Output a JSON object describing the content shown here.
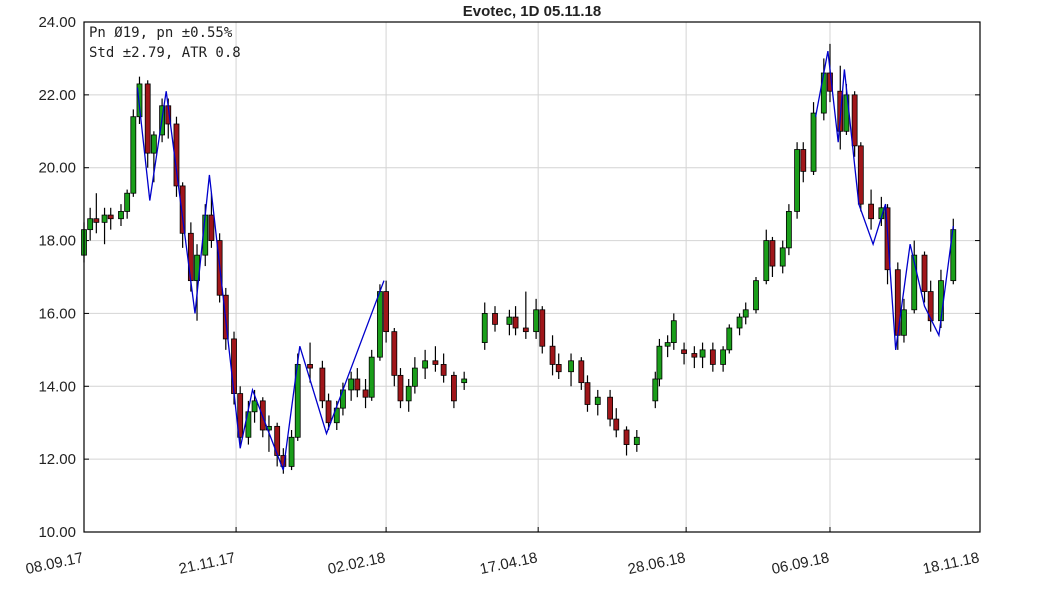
{
  "chart_data": {
    "type": "candlestick",
    "title": "Evotec, 1D 05.11.18",
    "annotations": [
      "Pn  Ø19, pn ±0.55%",
      "Std ±2.79, ATR 0.8"
    ],
    "xlim": [
      "08.09.17",
      "18.11.18"
    ],
    "xticks": [
      "08.09.17",
      "21.11.17",
      "02.02.18",
      "17.04.18",
      "28.06.18",
      "06.09.18",
      "18.11.18"
    ],
    "ylim": [
      10,
      24
    ],
    "yticks": [
      {
        "value": 10,
        "label": "10.00"
      },
      {
        "value": 12,
        "label": "12.00"
      },
      {
        "value": 14,
        "label": "14.00"
      },
      {
        "value": 16,
        "label": "16.00"
      },
      {
        "value": 18,
        "label": "18.00"
      },
      {
        "value": 20,
        "label": "20.00"
      },
      {
        "value": 22,
        "label": "22.00"
      },
      {
        "value": 24,
        "label": "24.00"
      }
    ],
    "grid": true,
    "up_color": "#1a9e1a",
    "down_color": "#a0161a",
    "wick_color": "#000000",
    "x": [
      "08.09.17",
      "11.09.17",
      "14.09.17",
      "18.09.17",
      "21.09.17",
      "26.09.17",
      "29.09.17",
      "02.10.17",
      "05.10.17",
      "09.10.17",
      "12.10.17",
      "16.10.17",
      "19.10.17",
      "23.10.17",
      "26.10.17",
      "30.10.17",
      "02.11.17",
      "06.11.17",
      "09.11.17",
      "13.11.17",
      "16.11.17",
      "20.11.17",
      "23.11.17",
      "27.11.17",
      "30.11.17",
      "04.12.17",
      "07.12.17",
      "11.12.17",
      "14.12.17",
      "18.12.17",
      "21.12.17",
      "27.12.17",
      "02.01.18",
      "05.01.18",
      "09.01.18",
      "12.01.18",
      "16.01.18",
      "19.01.18",
      "23.01.18",
      "26.01.18",
      "30.01.18",
      "02.02.18",
      "06.02.18",
      "09.02.18",
      "13.02.18",
      "16.02.18",
      "21.02.18",
      "26.02.18",
      "02.03.18",
      "07.03.18",
      "12.03.18",
      "22.03.18",
      "27.03.18",
      "03.04.18",
      "06.04.18",
      "11.04.18",
      "16.04.18",
      "19.04.18",
      "24.04.18",
      "27.04.18",
      "03.05.18",
      "08.05.18",
      "11.05.18",
      "16.05.18",
      "22.05.18",
      "25.05.18",
      "30.05.18",
      "04.06.18",
      "13.06.18",
      "15.06.18",
      "19.06.18",
      "22.06.18",
      "27.06.18",
      "02.07.18",
      "06.07.18",
      "11.07.18",
      "16.07.18",
      "19.07.18",
      "24.07.18",
      "27.07.18",
      "01.08.18",
      "06.08.18",
      "09.08.18",
      "14.08.18",
      "17.08.18",
      "21.08.18",
      "24.08.18",
      "29.08.18",
      "03.09.18",
      "06.09.18",
      "11.09.18",
      "14.09.18",
      "18.09.18",
      "21.09.18",
      "26.09.18",
      "01.10.18",
      "04.10.18",
      "09.10.18",
      "12.10.18",
      "17.10.18",
      "22.10.18",
      "25.10.18",
      "30.10.18",
      "05.11.18"
    ],
    "open": [
      17.6,
      18.3,
      18.6,
      18.5,
      18.7,
      18.6,
      18.8,
      19.3,
      21.4,
      22.3,
      20.4,
      20.9,
      21.7,
      21.2,
      19.5,
      18.2,
      16.9,
      17.6,
      18.7,
      18.0,
      16.5,
      15.3,
      13.8,
      12.6,
      13.3,
      13.6,
      12.8,
      12.9,
      12.1,
      11.8,
      12.6,
      14.6,
      14.5,
      13.6,
      13.0,
      13.4,
      13.9,
      14.2,
      13.9,
      13.7,
      14.8,
      16.6,
      15.5,
      14.3,
      13.6,
      14.0,
      14.5,
      14.7,
      14.6,
      14.3,
      14.1,
      15.2,
      16.0,
      15.7,
      15.9,
      15.6,
      15.5,
      16.1,
      15.1,
      14.6,
      14.4,
      14.7,
      14.1,
      13.5,
      13.7,
      13.1,
      12.8,
      12.4,
      13.6,
      14.2,
      15.1,
      15.2,
      15.0,
      14.9,
      14.8,
      15.0,
      14.6,
      15.0,
      15.6,
      15.9,
      16.1,
      16.9,
      18.0,
      17.3,
      17.8,
      18.8,
      20.5,
      19.9,
      21.5,
      22.6,
      22.1,
      21.0,
      22.0,
      20.6,
      19.0,
      18.6,
      18.9,
      17.2,
      15.4,
      16.1,
      17.6,
      16.6,
      15.8,
      16.9
    ],
    "high": [
      18.5,
      18.9,
      19.3,
      18.9,
      18.9,
      19.0,
      19.4,
      21.6,
      22.5,
      22.4,
      21.0,
      21.9,
      21.9,
      21.4,
      19.6,
      18.5,
      17.9,
      19.0,
      19.3,
      18.2,
      16.7,
      15.5,
      14.0,
      13.6,
      13.9,
      13.7,
      13.2,
      13.0,
      12.3,
      12.8,
      14.9,
      15.2,
      14.7,
      13.8,
      13.6,
      14.1,
      14.4,
      14.5,
      14.2,
      15.0,
      16.8,
      16.9,
      15.6,
      14.5,
      14.2,
      14.8,
      15.0,
      15.1,
      14.9,
      14.4,
      14.4,
      16.3,
      16.2,
      16.1,
      16.2,
      16.6,
      16.4,
      16.2,
      15.4,
      14.9,
      14.9,
      14.8,
      14.3,
      13.9,
      13.9,
      13.4,
      12.9,
      12.8,
      14.4,
      15.3,
      15.4,
      16.0,
      15.2,
      15.1,
      15.2,
      15.2,
      15.1,
      15.7,
      16.0,
      16.3,
      17.0,
      18.3,
      18.1,
      18.0,
      19.0,
      20.7,
      20.7,
      21.8,
      23.0,
      23.4,
      22.8,
      22.3,
      22.1,
      20.7,
      19.4,
      19.2,
      19.0,
      17.4,
      16.4,
      18.0,
      17.7,
      16.9,
      17.2,
      18.6
    ],
    "low": [
      17.4,
      18.0,
      18.2,
      17.9,
      18.3,
      18.4,
      18.6,
      19.2,
      21.2,
      20.0,
      19.6,
      20.7,
      20.8,
      19.2,
      17.8,
      16.6,
      15.8,
      17.3,
      17.8,
      16.3,
      15.0,
      13.5,
      12.3,
      12.4,
      13.0,
      12.6,
      12.2,
      11.8,
      11.6,
      11.7,
      12.5,
      14.1,
      13.4,
      12.8,
      12.8,
      13.2,
      13.6,
      13.7,
      13.4,
      13.6,
      14.7,
      15.2,
      14.0,
      13.4,
      13.3,
      13.8,
      14.2,
      14.4,
      14.1,
      13.4,
      13.9,
      15.0,
      15.5,
      15.4,
      15.4,
      15.3,
      15.3,
      14.9,
      14.3,
      14.2,
      14.0,
      13.9,
      13.3,
      13.2,
      12.9,
      12.6,
      12.1,
      12.2,
      13.4,
      14.0,
      14.8,
      15.0,
      14.6,
      14.5,
      14.5,
      14.4,
      14.4,
      14.9,
      15.4,
      15.7,
      16.0,
      16.8,
      17.0,
      17.1,
      17.6,
      18.6,
      19.6,
      19.8,
      21.3,
      21.8,
      20.5,
      20.9,
      20.3,
      18.8,
      18.3,
      18.4,
      16.8,
      15.0,
      15.2,
      16.0,
      16.3,
      15.5,
      15.6,
      16.8
    ],
    "close": [
      18.3,
      18.6,
      18.5,
      18.7,
      18.6,
      18.8,
      19.3,
      21.4,
      22.3,
      20.4,
      20.9,
      21.7,
      21.2,
      19.5,
      18.2,
      16.9,
      17.6,
      18.7,
      18.0,
      16.5,
      15.3,
      13.8,
      12.6,
      13.3,
      13.6,
      12.8,
      12.9,
      12.1,
      11.8,
      12.6,
      14.6,
      14.5,
      13.6,
      13.0,
      13.4,
      13.9,
      14.2,
      13.9,
      13.7,
      14.8,
      16.6,
      15.5,
      14.3,
      13.6,
      14.0,
      14.5,
      14.7,
      14.6,
      14.3,
      13.6,
      14.2,
      16.0,
      15.7,
      15.9,
      15.6,
      15.5,
      16.1,
      15.1,
      14.6,
      14.4,
      14.7,
      14.1,
      13.5,
      13.7,
      13.1,
      12.8,
      12.4,
      12.6,
      14.2,
      15.1,
      15.2,
      15.8,
      14.9,
      14.8,
      15.0,
      14.6,
      15.0,
      15.6,
      15.9,
      16.1,
      16.9,
      18.0,
      17.3,
      17.8,
      18.8,
      20.5,
      19.9,
      21.5,
      22.6,
      22.1,
      21.0,
      22.0,
      20.6,
      19.0,
      18.6,
      18.9,
      17.2,
      15.4,
      16.1,
      17.6,
      16.6,
      15.8,
      16.9,
      18.3
    ],
    "line": {
      "color": "#0000cc",
      "x": [
        "04.10.17",
        "10.10.17",
        "18.10.17",
        "01.11.17",
        "08.11.17",
        "23.11.17",
        "29.11.17",
        "14.12.17",
        "22.12.17",
        "04.01.18",
        "01.02.18",
        null,
        "30.08.18",
        "05.09.18",
        "10.09.18",
        "13.09.18",
        "20.09.18",
        "27.09.18",
        "03.10.18",
        "08.10.18",
        "15.10.18",
        "22.10.18",
        "29.10.18",
        "05.11.18"
      ],
      "values": [
        22.2,
        19.1,
        22.1,
        16.0,
        19.8,
        12.3,
        13.9,
        11.7,
        15.1,
        12.7,
        16.9,
        null,
        21.4,
        23.2,
        20.7,
        22.7,
        19.0,
        17.9,
        19.0,
        15.0,
        17.9,
        16.2,
        15.4,
        18.4
      ]
    }
  }
}
